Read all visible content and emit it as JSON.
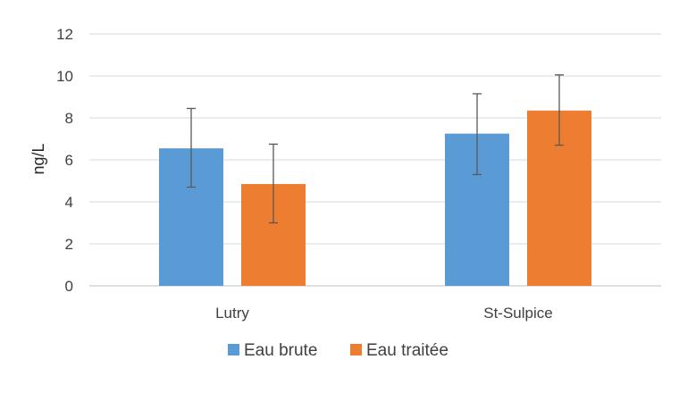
{
  "chart_data": {
    "type": "bar",
    "categories": [
      "Lutry",
      "St-Sulpice"
    ],
    "series": [
      {
        "name": "Eau brute",
        "color": "#5b9bd5",
        "values": [
          6.55,
          7.25
        ],
        "error_low": [
          4.7,
          5.3
        ],
        "error_high": [
          8.45,
          9.15
        ]
      },
      {
        "name": "Eau traitée",
        "color": "#ed7d31",
        "values": [
          4.85,
          8.35
        ],
        "error_low": [
          3.0,
          6.7
        ],
        "error_high": [
          6.75,
          10.05
        ]
      }
    ],
    "ylabel": "ng/L",
    "ylim": [
      0,
      12
    ],
    "yticks": [
      0,
      2,
      4,
      6,
      8,
      10,
      12
    ],
    "grid": true,
    "legend_position": "bottom"
  }
}
